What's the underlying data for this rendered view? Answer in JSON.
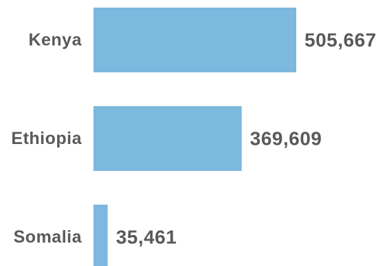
{
  "chart_data": {
    "type": "bar",
    "orientation": "horizontal",
    "categories": [
      "Kenya",
      "Ethiopia",
      "Somalia"
    ],
    "values": [
      505667,
      369609,
      35461
    ],
    "value_labels": [
      "505,667",
      "369,609",
      "35,461"
    ],
    "bar_color": "#7db8de",
    "text_color": "#595959",
    "grid": false,
    "legend": "none"
  }
}
